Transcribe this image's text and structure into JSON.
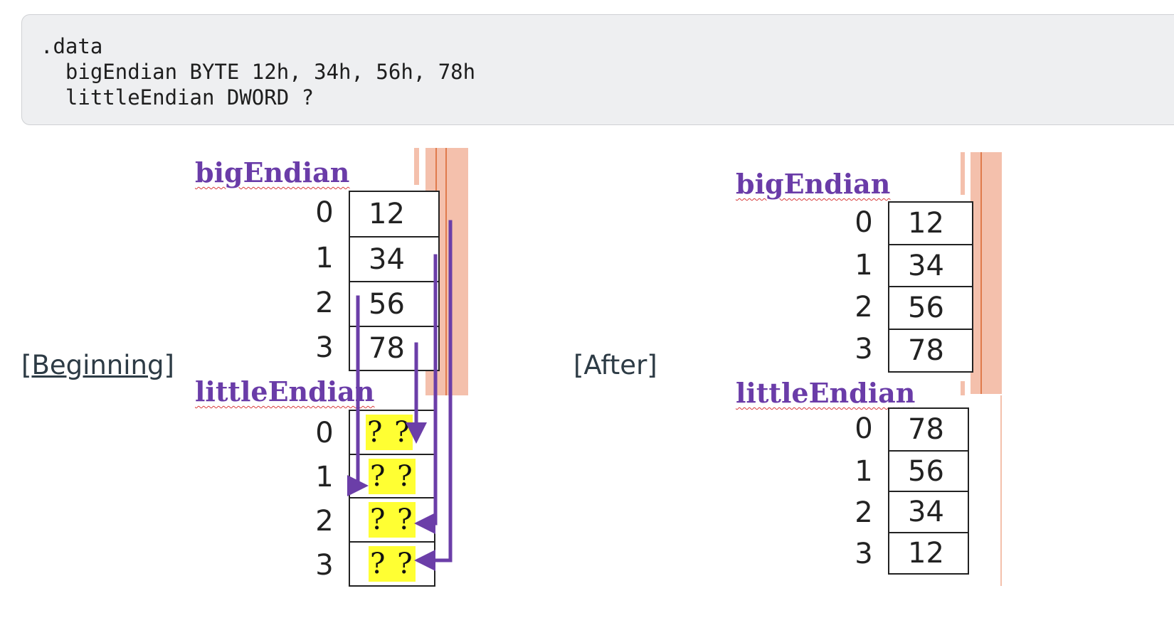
{
  "code": {
    "lines": [
      ".data",
      "  bigEndian BYTE 12h, 34h, 56h, 78h",
      "  littleEndian DWORD ?"
    ]
  },
  "captions": {
    "beginning_open": "[",
    "beginning_word": "Beginning",
    "beginning_close": "]",
    "after": "[After]"
  },
  "before": {
    "big_label": "bigEndian",
    "little_label": "littleEndian",
    "big_indices": [
      "0",
      "1",
      "2",
      "3"
    ],
    "big_values": [
      "12",
      "34",
      "56",
      "78"
    ],
    "little_indices": [
      "0",
      "1",
      "2",
      "3"
    ],
    "little_values": [
      "? ?",
      "? ?",
      "? ?",
      "? ?"
    ]
  },
  "after": {
    "big_label": "bigEndian",
    "little_label": "littleEndian",
    "big_indices": [
      "0",
      "1",
      "2",
      "3"
    ],
    "big_values": [
      "12",
      "34",
      "56",
      "78"
    ],
    "little_indices": [
      "0",
      "1",
      "2",
      "3"
    ],
    "little_values": [
      "78",
      "56",
      "34",
      "12"
    ]
  },
  "colors": {
    "label_purple": "#6a3ca8",
    "arrow_purple": "#6b3ea8",
    "highlight_yellow": "#ffff33",
    "pink_strip": "#f4c0ac",
    "code_bg": "#eeeff1"
  }
}
